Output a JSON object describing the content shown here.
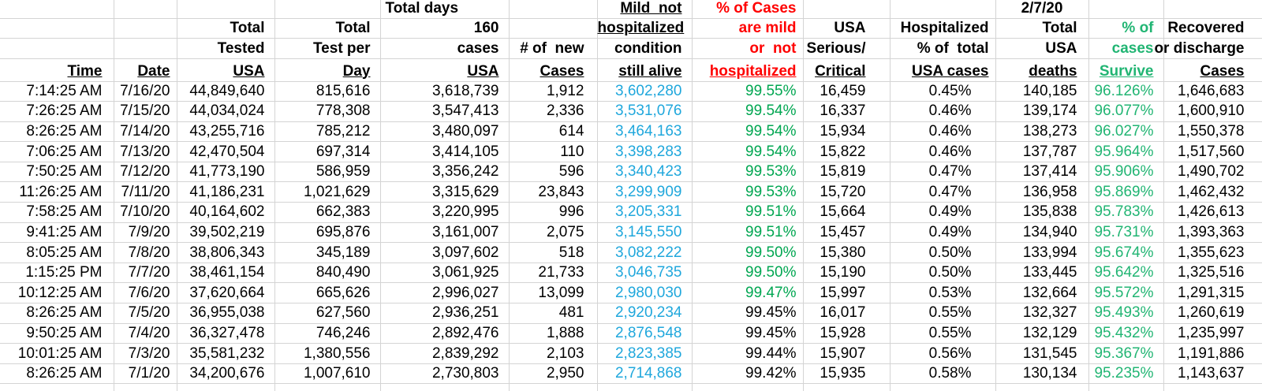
{
  "report_date": "2/7/20",
  "colors": {
    "accent_red": "#ff0000",
    "accent_blue": "#1fa7dc",
    "accent_green_bold": "#00a651",
    "accent_green": "#21b573",
    "gridline": "#d4d4d4"
  },
  "table": {
    "header_rows": [
      [
        "",
        "",
        "",
        "",
        "Total days",
        "",
        "Mild  not",
        "% of Cases",
        "",
        "",
        "2/7/20",
        "",
        ""
      ],
      [
        "",
        "",
        "Total",
        "Total",
        "160",
        "",
        "hospitalized",
        "are mild",
        "USA",
        "Hospitalized",
        "Total",
        "% of",
        "Recovered"
      ],
      [
        "",
        "",
        "Tested",
        "Test per",
        "cases",
        "# of  new",
        "condition",
        "or  not",
        "Serious/",
        "% of  total",
        "USA",
        "cases",
        "or discharge"
      ],
      [
        "Time",
        "Date",
        "USA",
        "Day",
        "USA",
        "Cases",
        "still alive",
        "hospitalized",
        "Critical",
        "USA cases",
        "deaths",
        "Survive",
        "Cases"
      ]
    ],
    "column_keys": [
      "time",
      "date",
      "tested",
      "per_day",
      "cases",
      "new_cases",
      "mild",
      "mild_pct",
      "serious",
      "hosp_pct",
      "deaths",
      "survive",
      "recovered"
    ],
    "rows": [
      {
        "time": "7:14:25 AM",
        "date": "7/16/20",
        "tested": "44,849,640",
        "per_day": "815,616",
        "cases": "3,618,739",
        "new_cases": "1,912",
        "mild": "3,602,280",
        "mild_pct": "99.55%",
        "mild_pct_green": true,
        "serious": "16,459",
        "hosp_pct": "0.45%",
        "deaths": "140,185",
        "survive": "96.126%",
        "recovered": "1,646,683"
      },
      {
        "time": "7:26:25 AM",
        "date": "7/15/20",
        "tested": "44,034,024",
        "per_day": "778,308",
        "cases": "3,547,413",
        "new_cases": "2,336",
        "mild": "3,531,076",
        "mild_pct": "99.54%",
        "mild_pct_green": true,
        "serious": "16,337",
        "hosp_pct": "0.46%",
        "deaths": "139,174",
        "survive": "96.077%",
        "recovered": "1,600,910"
      },
      {
        "time": "8:26:25 AM",
        "date": "7/14/20",
        "tested": "43,255,716",
        "per_day": "785,212",
        "cases": "3,480,097",
        "new_cases": "614",
        "mild": "3,464,163",
        "mild_pct": "99.54%",
        "mild_pct_green": true,
        "serious": "15,934",
        "hosp_pct": "0.46%",
        "deaths": "138,273",
        "survive": "96.027%",
        "recovered": "1,550,378"
      },
      {
        "time": "7:06:25 AM",
        "date": "7/13/20",
        "tested": "42,470,504",
        "per_day": "697,314",
        "cases": "3,414,105",
        "new_cases": "110",
        "mild": "3,398,283",
        "mild_pct": "99.54%",
        "mild_pct_green": true,
        "serious": "15,822",
        "hosp_pct": "0.46%",
        "deaths": "137,787",
        "survive": "95.964%",
        "recovered": "1,517,560"
      },
      {
        "time": "7:50:25 AM",
        "date": "7/12/20",
        "tested": "41,773,190",
        "per_day": "586,959",
        "cases": "3,356,242",
        "new_cases": "596",
        "mild": "3,340,423",
        "mild_pct": "99.53%",
        "mild_pct_green": true,
        "serious": "15,819",
        "hosp_pct": "0.47%",
        "deaths": "137,414",
        "survive": "95.906%",
        "recovered": "1,490,702"
      },
      {
        "time": "11:26:25 AM",
        "date": "7/11/20",
        "tested": "41,186,231",
        "per_day": "1,021,629",
        "cases": "3,315,629",
        "new_cases": "23,843",
        "mild": "3,299,909",
        "mild_pct": "99.53%",
        "mild_pct_green": true,
        "serious": "15,720",
        "hosp_pct": "0.47%",
        "deaths": "136,958",
        "survive": "95.869%",
        "recovered": "1,462,432"
      },
      {
        "time": "7:58:25 AM",
        "date": "7/10/20",
        "tested": "40,164,602",
        "per_day": "662,383",
        "cases": "3,220,995",
        "new_cases": "996",
        "mild": "3,205,331",
        "mild_pct": "99.51%",
        "mild_pct_green": true,
        "serious": "15,664",
        "hosp_pct": "0.49%",
        "deaths": "135,838",
        "survive": "95.783%",
        "recovered": "1,426,613"
      },
      {
        "time": "9:41:25 AM",
        "date": "7/9/20",
        "tested": "39,502,219",
        "per_day": "695,876",
        "cases": "3,161,007",
        "new_cases": "2,075",
        "mild": "3,145,550",
        "mild_pct": "99.51%",
        "mild_pct_green": true,
        "serious": "15,457",
        "hosp_pct": "0.49%",
        "deaths": "134,940",
        "survive": "95.731%",
        "recovered": "1,393,363"
      },
      {
        "time": "8:05:25 AM",
        "date": "7/8/20",
        "tested": "38,806,343",
        "per_day": "345,189",
        "cases": "3,097,602",
        "new_cases": "518",
        "mild": "3,082,222",
        "mild_pct": "99.50%",
        "mild_pct_green": true,
        "serious": "15,380",
        "hosp_pct": "0.50%",
        "deaths": "133,994",
        "survive": "95.674%",
        "recovered": "1,355,623"
      },
      {
        "time": "1:15:25 PM",
        "date": "7/7/20",
        "tested": "38,461,154",
        "per_day": "840,490",
        "cases": "3,061,925",
        "new_cases": "21,733",
        "mild": "3,046,735",
        "mild_pct": "99.50%",
        "mild_pct_green": true,
        "serious": "15,190",
        "hosp_pct": "0.50%",
        "deaths": "133,445",
        "survive": "95.642%",
        "recovered": "1,325,516"
      },
      {
        "time": "10:12:25 AM",
        "date": "7/6/20",
        "tested": "37,620,664",
        "per_day": "665,626",
        "cases": "2,996,027",
        "new_cases": "13,099",
        "mild": "2,980,030",
        "mild_pct": "99.47%",
        "mild_pct_green": true,
        "serious": "15,997",
        "hosp_pct": "0.53%",
        "deaths": "132,664",
        "survive": "95.572%",
        "recovered": "1,291,315"
      },
      {
        "time": "8:26:25 AM",
        "date": "7/5/20",
        "tested": "36,955,038",
        "per_day": "627,560",
        "cases": "2,936,251",
        "new_cases": "481",
        "mild": "2,920,234",
        "mild_pct": "99.45%",
        "mild_pct_green": false,
        "serious": "16,017",
        "hosp_pct": "0.55%",
        "deaths": "132,327",
        "survive": "95.493%",
        "recovered": "1,260,619"
      },
      {
        "time": "9:50:25 AM",
        "date": "7/4/20",
        "tested": "36,327,478",
        "per_day": "746,246",
        "cases": "2,892,476",
        "new_cases": "1,888",
        "mild": "2,876,548",
        "mild_pct": "99.45%",
        "mild_pct_green": false,
        "serious": "15,928",
        "hosp_pct": "0.55%",
        "deaths": "132,129",
        "survive": "95.432%",
        "recovered": "1,235,997"
      },
      {
        "time": "10:01:25 AM",
        "date": "7/3/20",
        "tested": "35,581,232",
        "per_day": "1,380,556",
        "cases": "2,839,292",
        "new_cases": "2,103",
        "mild": "2,823,385",
        "mild_pct": "99.44%",
        "mild_pct_green": false,
        "serious": "15,907",
        "hosp_pct": "0.56%",
        "deaths": "131,545",
        "survive": "95.367%",
        "recovered": "1,191,886"
      },
      {
        "time": "8:26:25 AM",
        "date": "7/1/20",
        "tested": "34,200,676",
        "per_day": "1,007,610",
        "cases": "2,730,803",
        "new_cases": "2,950",
        "mild": "2,714,868",
        "mild_pct": "99.42%",
        "mild_pct_green": false,
        "serious": "15,935",
        "hosp_pct": "0.58%",
        "deaths": "130,134",
        "survive": "95.235%",
        "recovered": "1,143,637"
      }
    ]
  }
}
